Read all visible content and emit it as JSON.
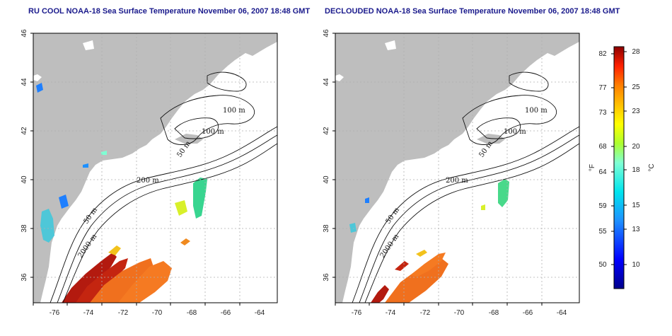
{
  "panels": [
    {
      "id": "left",
      "title": "RU COOL NOAA-18 Sea Surface Temperature November 06, 2007 18:48 GMT",
      "x_ticks": [
        "-76",
        "-74",
        "-72",
        "-70",
        "-68",
        "-66",
        "-64"
      ],
      "y_ticks": [
        "36",
        "38",
        "40",
        "42",
        "44",
        "46"
      ],
      "contour_labels": [
        "100 m",
        "100 m",
        "50 m",
        "200 m",
        "50 m",
        "2000 m"
      ]
    },
    {
      "id": "right",
      "title": "DECLOUDED NOAA-18 Sea Surface Temperature November 06, 2007 18:48 GMT",
      "x_ticks": [
        "-76",
        "-74",
        "-72",
        "-70",
        "-68",
        "-66",
        "-64"
      ],
      "y_ticks": [
        "36",
        "38",
        "40",
        "42",
        "44",
        "46"
      ],
      "contour_labels": [
        "100 m",
        "100 m",
        "50 m",
        "200 m",
        "50 m",
        "2000 m"
      ]
    }
  ],
  "colorbar": {
    "fahrenheit_unit": "°F",
    "celsius_unit": "°C",
    "fahrenheit_ticks": [
      "82",
      "77",
      "73",
      "68",
      "64",
      "59",
      "55",
      "50"
    ],
    "celsius_ticks": [
      "28",
      "25",
      "23",
      "20",
      "18",
      "15",
      "13",
      "10"
    ]
  },
  "colors": {
    "title": "#1a1a8c",
    "land": "#bebebe",
    "ocean": "#ffffff",
    "grid": "#b0b0b0",
    "contour": "#111111"
  }
}
